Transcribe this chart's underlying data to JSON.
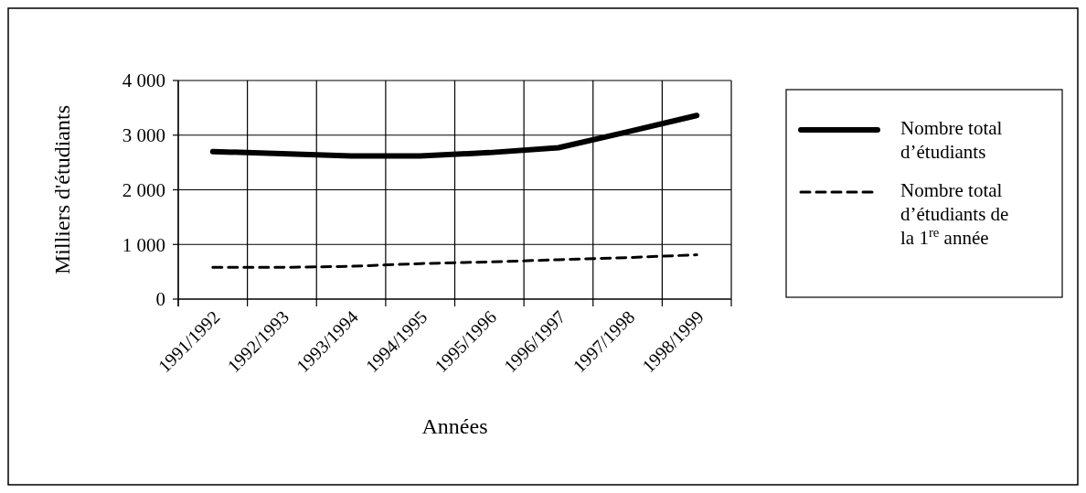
{
  "chart_data": {
    "type": "line",
    "xlabel": "Années",
    "ylabel": "Milliers d'étudiants",
    "categories": [
      "1991/1992",
      "1992/1993",
      "1993/1994",
      "1994/1995",
      "1995/1996",
      "1996/1997",
      "1997/1998",
      "1998/1999"
    ],
    "series": [
      {
        "name": "Nombre total d’étudiants",
        "color": "#000000",
        "line_style": "solid",
        "values": [
          2700,
          2660,
          2620,
          2620,
          2680,
          2770,
          3060,
          3360
        ]
      },
      {
        "name": "Nombre total d’étudiants de la 1$^{re}$ année",
        "color": "#000000",
        "line_style": "dashed",
        "values": [
          580,
          580,
          600,
          650,
          680,
          720,
          760,
          810
        ]
      }
    ],
    "ylim": [
      0,
      4000
    ],
    "yticks": [
      {
        "value": 0,
        "label": "0"
      },
      {
        "value": 1000,
        "label": "1 000"
      },
      {
        "value": 2000,
        "label": "2 000"
      },
      {
        "value": 3000,
        "label": "3 000"
      },
      {
        "value": 4000,
        "label": "4 000"
      }
    ],
    "grid": true,
    "legend": "right",
    "marker": "none"
  }
}
